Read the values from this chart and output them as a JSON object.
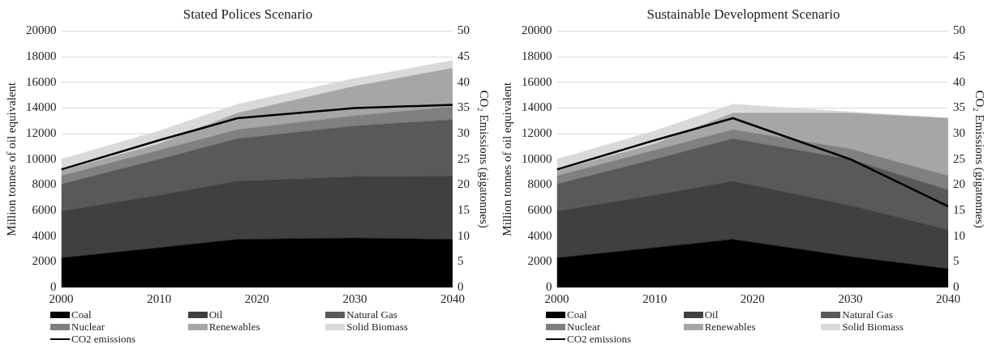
{
  "chart_data": [
    {
      "type": "area",
      "title": "Stated Polices Scenario",
      "ylabel": "Million tonnes of oil equivalent",
      "y2label": "CO₂ Emissions (gigatonnes)",
      "stacked": true,
      "x": [
        2000,
        2010,
        2018,
        2030,
        2040
      ],
      "xlim": [
        2000,
        2040
      ],
      "xticks": [
        2000,
        2010,
        2020,
        2030,
        2040
      ],
      "ylim": [
        0,
        20000
      ],
      "yticks": [
        0,
        2000,
        4000,
        6000,
        8000,
        10000,
        12000,
        14000,
        16000,
        18000,
        20000
      ],
      "y2lim": [
        0,
        50
      ],
      "y2ticks": [
        0,
        5,
        10,
        15,
        20,
        25,
        30,
        35,
        40,
        45,
        50
      ],
      "grid": "y",
      "legend": "bottom",
      "series": [
        {
          "name": "Coal",
          "color": "#000000",
          "values": [
            2300,
            3100,
            3750,
            3850,
            3750
          ]
        },
        {
          "name": "Oil",
          "color": "#404040",
          "values": [
            3650,
            4100,
            4550,
            4800,
            4950
          ]
        },
        {
          "name": "Natural Gas",
          "color": "#595959",
          "values": [
            2100,
            2800,
            3300,
            3950,
            4400
          ]
        },
        {
          "name": "Nuclear",
          "color": "#808080",
          "values": [
            650,
            700,
            700,
            800,
            1000
          ]
        },
        {
          "name": "Renewables",
          "color": "#a6a6a6",
          "values": [
            400,
            500,
            1300,
            2300,
            3000
          ]
        },
        {
          "name": "Solid Biomass",
          "color": "#d9d9d9",
          "values": [
            900,
            1000,
            700,
            600,
            600
          ]
        },
        {
          "name": "CO2 emissions",
          "type": "line",
          "axis": "y2",
          "color": "#000000",
          "values": [
            23,
            28.7,
            33,
            35,
            35.6
          ]
        }
      ]
    },
    {
      "type": "area",
      "title": "Sustainable Development Scenario",
      "ylabel": "Million tonnes of oil equivalent",
      "y2label": "CO₂ Emissions (gigatonnes)",
      "stacked": true,
      "x": [
        2000,
        2010,
        2018,
        2030,
        2040
      ],
      "xlim": [
        2000,
        2040
      ],
      "xticks": [
        2000,
        2010,
        2020,
        2030,
        2040
      ],
      "ylim": [
        0,
        20000
      ],
      "yticks": [
        0,
        2000,
        4000,
        6000,
        8000,
        10000,
        12000,
        14000,
        16000,
        18000,
        20000
      ],
      "y2lim": [
        0,
        50
      ],
      "y2ticks": [
        0,
        5,
        10,
        15,
        20,
        25,
        30,
        35,
        40,
        45,
        50
      ],
      "grid": "y",
      "legend": "bottom",
      "series": [
        {
          "name": "Coal",
          "color": "#000000",
          "values": [
            2300,
            3100,
            3750,
            2400,
            1450
          ]
        },
        {
          "name": "Oil",
          "color": "#404040",
          "values": [
            3650,
            4100,
            4550,
            4000,
            3050
          ]
        },
        {
          "name": "Natural Gas",
          "color": "#595959",
          "values": [
            2100,
            2800,
            3300,
            3600,
            3100
          ]
        },
        {
          "name": "Nuclear",
          "color": "#808080",
          "values": [
            650,
            700,
            700,
            800,
            1100
          ]
        },
        {
          "name": "Renewables",
          "color": "#a6a6a6",
          "values": [
            400,
            500,
            1300,
            2800,
            4500
          ]
        },
        {
          "name": "Solid Biomass",
          "color": "#d9d9d9",
          "values": [
            900,
            1000,
            700,
            100,
            0
          ]
        },
        {
          "name": "CO2 emissions",
          "type": "line",
          "axis": "y2",
          "color": "#000000",
          "values": [
            23,
            28.7,
            33,
            25,
            15.8
          ]
        }
      ]
    }
  ]
}
